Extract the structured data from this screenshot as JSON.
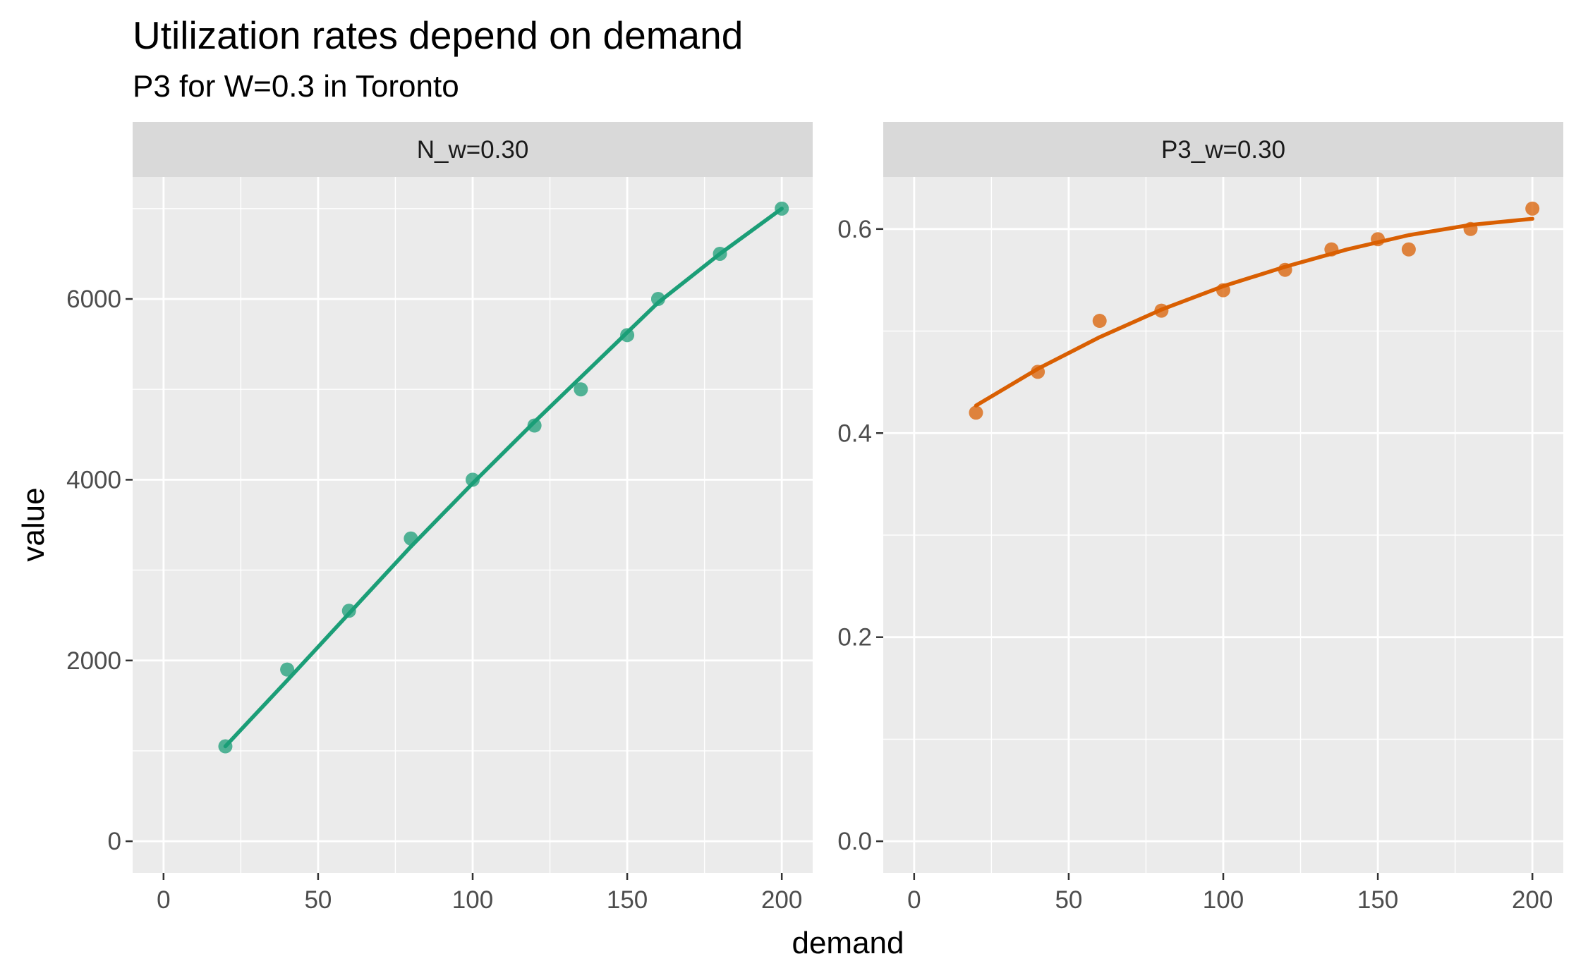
{
  "chart_data": {
    "type": "scatter",
    "title": "Utilization rates depend on demand",
    "subtitle": "P3 for W=0.3 in Toronto",
    "xlabel": "demand",
    "ylabel": "value",
    "grid": true,
    "legend": "none",
    "panels": [
      {
        "label": "N_w=0.30",
        "color": "#1b9e77",
        "xlim": [
          -10,
          210
        ],
        "ylim": [
          -350,
          7350
        ],
        "x_ticks": [
          0,
          50,
          100,
          150,
          200
        ],
        "x_tick_labels": [
          "0",
          "50",
          "100",
          "150",
          "200"
        ],
        "y_ticks": [
          0,
          2000,
          4000,
          6000
        ],
        "y_tick_labels": [
          "0",
          "2000",
          "4000",
          "6000"
        ],
        "points": {
          "x": [
            20,
            40,
            60,
            80,
            100,
            120,
            135,
            150,
            160,
            180,
            200
          ],
          "y": [
            1050,
            1900,
            2550,
            3350,
            4000,
            4600,
            5000,
            5600,
            6000,
            6500,
            7000
          ]
        },
        "fit": {
          "x": [
            20,
            40,
            60,
            80,
            100,
            120,
            140,
            160,
            180,
            200
          ],
          "y": [
            1050,
            1780,
            2520,
            3260,
            3960,
            4640,
            5300,
            5960,
            6500,
            7000
          ]
        }
      },
      {
        "label": "P3_w=0.30",
        "color": "#d95f02",
        "xlim": [
          -10,
          210
        ],
        "ylim": [
          -0.031,
          0.651
        ],
        "x_ticks": [
          0,
          50,
          100,
          150,
          200
        ],
        "x_tick_labels": [
          "0",
          "50",
          "100",
          "150",
          "200"
        ],
        "y_ticks": [
          0.0,
          0.2,
          0.4,
          0.6
        ],
        "y_tick_labels": [
          "0.0",
          "0.2",
          "0.4",
          "0.6"
        ],
        "points": {
          "x": [
            20,
            40,
            60,
            80,
            100,
            120,
            135,
            150,
            160,
            180,
            200
          ],
          "y": [
            0.42,
            0.46,
            0.51,
            0.52,
            0.54,
            0.56,
            0.58,
            0.59,
            0.58,
            0.6,
            0.62
          ]
        },
        "fit": {
          "x": [
            20,
            40,
            60,
            80,
            100,
            120,
            140,
            160,
            180,
            200
          ],
          "y": [
            0.427,
            0.463,
            0.494,
            0.521,
            0.544,
            0.563,
            0.58,
            0.594,
            0.604,
            0.61
          ]
        }
      }
    ]
  }
}
